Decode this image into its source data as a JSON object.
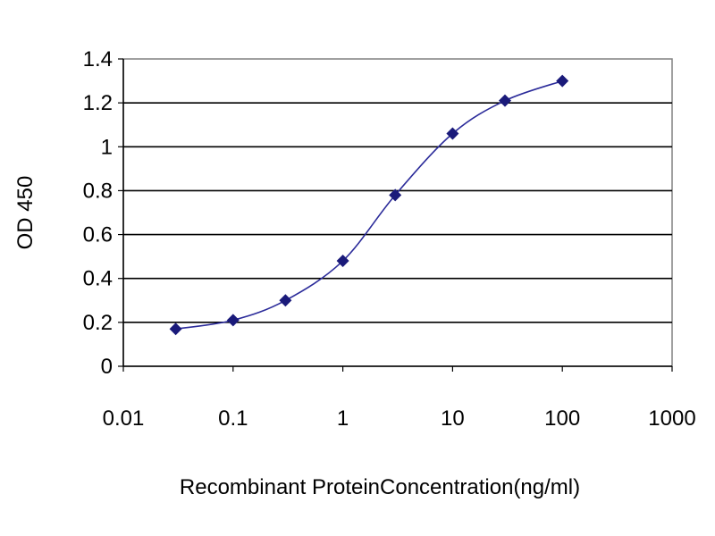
{
  "chart_data": {
    "type": "line",
    "title": "",
    "xlabel": "Recombinant ProteinConcentration(ng/ml)",
    "ylabel": "OD 450",
    "x_scale": "log",
    "xlim": [
      0.01,
      1000
    ],
    "ylim": [
      0,
      1.4
    ],
    "x_ticks": [
      "0.01",
      "0.1",
      "1",
      "10",
      "100",
      "1000"
    ],
    "y_ticks": [
      "0",
      "0.2",
      "0.4",
      "0.6",
      "0.8",
      "1",
      "1.2",
      "1.4"
    ],
    "grid": "horizontal",
    "legend": "none",
    "series": [
      {
        "x": [
          0.03,
          0.1,
          0.3,
          1,
          3,
          10,
          30,
          100
        ],
        "y": [
          0.17,
          0.21,
          0.3,
          0.48,
          0.78,
          1.06,
          1.21,
          1.3
        ],
        "color": "#2b2b9a",
        "marker": "diamond",
        "marker_color": "#1a1a7a"
      }
    ]
  }
}
